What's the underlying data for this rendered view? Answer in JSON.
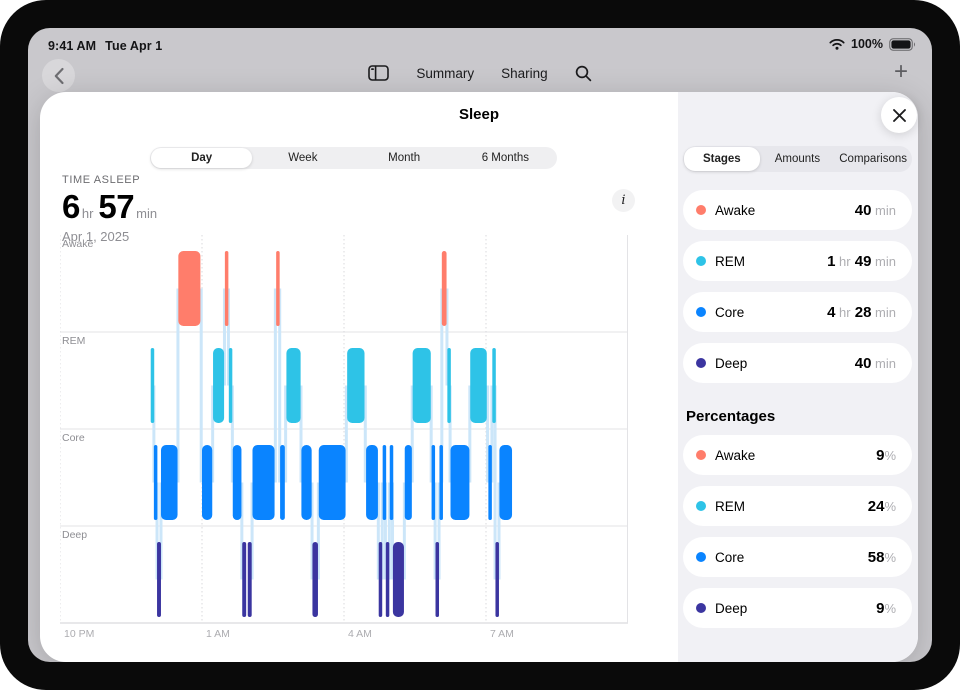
{
  "status_bar": {
    "time": "9:41 AM",
    "date": "Tue Apr 1",
    "battery_percent": "100%"
  },
  "navbar": {
    "items": [
      {
        "label": "Summary"
      },
      {
        "label": "Sharing"
      }
    ]
  },
  "sheet": {
    "title": "Sleep",
    "range_tabs": {
      "options": [
        "Day",
        "Week",
        "Month",
        "6 Months"
      ],
      "selected": "Day"
    },
    "metric": {
      "label": "TIME ASLEEP",
      "hours": "6",
      "hours_unit": "hr",
      "minutes": "57",
      "minutes_unit": "min",
      "date": "Apr 1, 2025"
    }
  },
  "chart_data": {
    "type": "hypnogram-timeline",
    "rows": [
      "Awake",
      "REM",
      "Core",
      "Deep"
    ],
    "x_axis": {
      "tick_labels": [
        "10 PM",
        "1 AM",
        "4 AM",
        "7 AM"
      ],
      "tick_hours": [
        0,
        3,
        6,
        9
      ],
      "window_hours": 12
    },
    "colors": {
      "Awake": "#FF7D6B",
      "REM": "#2EC3E7",
      "Core": "#0A84FF",
      "Deep": "#3B35A0",
      "connector": "#CCE6F9",
      "gridline": "#D9D9DD",
      "rowline": "#E3E3E6",
      "axisline": "#D2D2D6",
      "label": "#8E8E93",
      "tick": "#ACACB0"
    },
    "segments": [
      {
        "stage": "REM",
        "start_min": 115,
        "end_min": 119
      },
      {
        "stage": "Core",
        "start_min": 119,
        "end_min": 123
      },
      {
        "stage": "Deep",
        "start_min": 123,
        "end_min": 128
      },
      {
        "stage": "Core",
        "start_min": 128,
        "end_min": 149
      },
      {
        "stage": "Awake",
        "start_min": 150,
        "end_min": 178
      },
      {
        "stage": "Core",
        "start_min": 180,
        "end_min": 193
      },
      {
        "stage": "REM",
        "start_min": 194,
        "end_min": 208
      },
      {
        "stage": "Awake",
        "start_min": 209,
        "end_min": 213
      },
      {
        "stage": "REM",
        "start_min": 214,
        "end_min": 218
      },
      {
        "stage": "Core",
        "start_min": 219,
        "end_min": 230
      },
      {
        "stage": "Deep",
        "start_min": 231,
        "end_min": 236
      },
      {
        "stage": "Deep",
        "start_min": 238,
        "end_min": 243
      },
      {
        "stage": "Core",
        "start_min": 244,
        "end_min": 272
      },
      {
        "stage": "Awake",
        "start_min": 274,
        "end_min": 278
      },
      {
        "stage": "Core",
        "start_min": 279,
        "end_min": 285
      },
      {
        "stage": "REM",
        "start_min": 287,
        "end_min": 305
      },
      {
        "stage": "Core",
        "start_min": 306,
        "end_min": 319
      },
      {
        "stage": "Deep",
        "start_min": 320,
        "end_min": 327
      },
      {
        "stage": "Core",
        "start_min": 328,
        "end_min": 362
      },
      {
        "stage": "REM",
        "start_min": 364,
        "end_min": 386
      },
      {
        "stage": "Core",
        "start_min": 388,
        "end_min": 403
      },
      {
        "stage": "Deep",
        "start_min": 404,
        "end_min": 408
      },
      {
        "stage": "Core",
        "start_min": 409,
        "end_min": 412
      },
      {
        "stage": "Deep",
        "start_min": 413,
        "end_min": 417
      },
      {
        "stage": "Core",
        "start_min": 418,
        "end_min": 421
      },
      {
        "stage": "Deep",
        "start_min": 422,
        "end_min": 436
      },
      {
        "stage": "Core",
        "start_min": 437,
        "end_min": 446
      },
      {
        "stage": "REM",
        "start_min": 447,
        "end_min": 470
      },
      {
        "stage": "Core",
        "start_min": 471,
        "end_min": 475
      },
      {
        "stage": "Deep",
        "start_min": 476,
        "end_min": 480
      },
      {
        "stage": "Core",
        "start_min": 481,
        "end_min": 484
      },
      {
        "stage": "Awake",
        "start_min": 484,
        "end_min": 490
      },
      {
        "stage": "REM",
        "start_min": 491,
        "end_min": 494
      },
      {
        "stage": "Core",
        "start_min": 495,
        "end_min": 519
      },
      {
        "stage": "REM",
        "start_min": 520,
        "end_min": 541
      },
      {
        "stage": "Core",
        "start_min": 543,
        "end_min": 547
      },
      {
        "stage": "REM",
        "start_min": 548,
        "end_min": 551
      },
      {
        "stage": "Deep",
        "start_min": 552,
        "end_min": 556
      },
      {
        "stage": "Core",
        "start_min": 557,
        "end_min": 573
      }
    ]
  },
  "panel": {
    "tabs": {
      "options": [
        "Stages",
        "Amounts",
        "Comparisons"
      ],
      "selected": "Stages"
    },
    "durations": [
      {
        "stage": "Awake",
        "color": "#FF7D6B",
        "parts": [
          {
            "num": "40",
            "unit": "min"
          }
        ]
      },
      {
        "stage": "REM",
        "color": "#2EC3E7",
        "parts": [
          {
            "num": "1",
            "unit": "hr"
          },
          {
            "num": "49",
            "unit": "min"
          }
        ]
      },
      {
        "stage": "Core",
        "color": "#0A84FF",
        "parts": [
          {
            "num": "4",
            "unit": "hr"
          },
          {
            "num": "28",
            "unit": "min"
          }
        ]
      },
      {
        "stage": "Deep",
        "color": "#3B35A0",
        "parts": [
          {
            "num": "40",
            "unit": "min"
          }
        ]
      }
    ],
    "percent_section_title": "Percentages",
    "percentages": [
      {
        "stage": "Awake",
        "color": "#FF7D6B",
        "parts": [
          {
            "num": "9",
            "unit": "%"
          }
        ]
      },
      {
        "stage": "REM",
        "color": "#2EC3E7",
        "parts": [
          {
            "num": "24",
            "unit": "%"
          }
        ]
      },
      {
        "stage": "Core",
        "color": "#0A84FF",
        "parts": [
          {
            "num": "58",
            "unit": "%"
          }
        ]
      },
      {
        "stage": "Deep",
        "color": "#3B35A0",
        "parts": [
          {
            "num": "9",
            "unit": "%"
          }
        ]
      }
    ]
  }
}
